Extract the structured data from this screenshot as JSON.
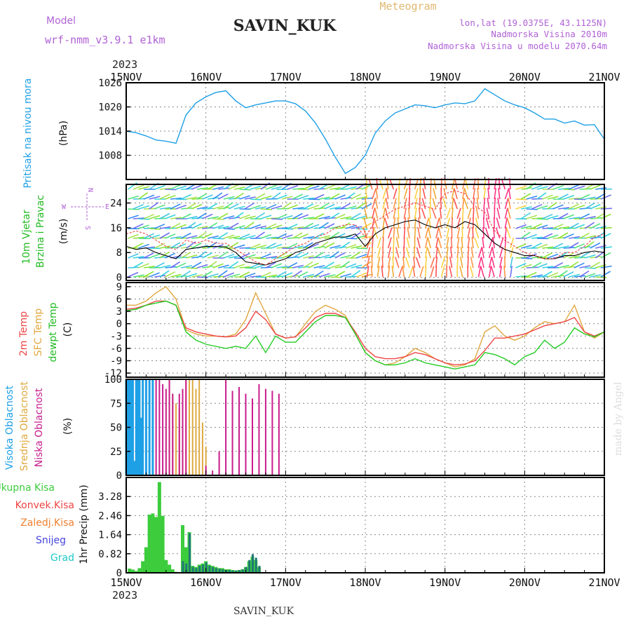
{
  "header": {
    "model_label": "Model",
    "model_name": "wrf-nmm_v3.9.1 e1km",
    "station": "SAVIN_KUK",
    "product": "Meteogram",
    "lonlat": "lon,lat (19.0375E, 43.1125N)",
    "elevation": "Nadmorska Visina 2010m",
    "model_elevation": "Nadmorska Visina u modelu 2070.64m"
  },
  "footer": {
    "station": "SAVIN_KUK",
    "credit": "made by Angel"
  },
  "colors": {
    "pressure": "#1ea0e6",
    "temp2m": "#ee4444",
    "sfc": "#e0a840",
    "dewpt": "#22cc22",
    "high_cloud": "#1ea0e6",
    "mid_cloud": "#e0a840",
    "low_cloud": "#c81c8c",
    "total_precip": "#3ccc3c",
    "conv_precip": "#ee4444",
    "frozen_precip": "#f08030",
    "snow": "#4444dd",
    "graupel": "#20c8c8",
    "wind_speed": "#000000",
    "gust": "#ee4444"
  },
  "time_axis": {
    "year": "2023",
    "tick_labels": [
      "15NOV",
      "16NOV",
      "17NOV",
      "18NOV",
      "19NOV",
      "20NOV",
      "21NOV"
    ]
  },
  "panels": {
    "pressure": {
      "label": "Pritisak na nivou mora",
      "unit": "(hPa)"
    },
    "wind": {
      "label1": "10m Vjetar",
      "label2": "Brzina i Pravac",
      "unit": "(m/s)",
      "compass_w": "W",
      "compass_e": "E",
      "compass_n": "N",
      "compass_s": "S"
    },
    "temp": {
      "label1": "2m Temp",
      "label2": "SFC Temp",
      "label3": "dewpt Temp",
      "unit": "(C)"
    },
    "cloud": {
      "label1": "Visoka Oblacnost",
      "label2": "Srednja Oblacnost",
      "label3": "Niska Oblacnost",
      "unit": "(%)"
    },
    "precip": {
      "unit": "1hr Precip (mm)",
      "legend": [
        "Ukupna Kisa",
        "Konvek.Kisa",
        "Zaledj.Kisa",
        "Snijeg",
        "Grad"
      ]
    }
  },
  "chart_data": [
    {
      "type": "line",
      "title": "",
      "ylabel": "Pritisak na nivou mora (hPa)",
      "ylim": [
        1002,
        1026
      ],
      "yticks": [
        1008,
        1014,
        1020,
        1026
      ],
      "x": [
        0,
        3,
        6,
        9,
        12,
        15,
        18,
        21,
        24,
        27,
        30,
        33,
        36,
        39,
        42,
        45,
        48,
        51,
        54,
        57,
        60,
        63,
        66,
        69,
        72,
        75,
        78,
        81,
        84,
        87,
        90,
        93,
        96,
        99,
        102,
        105,
        108,
        111,
        114,
        117,
        120,
        123,
        126,
        129,
        132,
        135,
        138,
        141,
        144
      ],
      "series": [
        {
          "name": "Pritisak na nivou mora",
          "values": [
            1014,
            1013.6,
            1012.8,
            1011.8,
            1011.5,
            1011,
            1018,
            1021,
            1022.5,
            1023.6,
            1024,
            1021.5,
            1019.8,
            1020.5,
            1021,
            1021.5,
            1021.5,
            1020.8,
            1019,
            1016,
            1012,
            1007.5,
            1003.5,
            1005,
            1008,
            1013.5,
            1016.5,
            1018.5,
            1019.5,
            1020.5,
            1020.3,
            1019.8,
            1020.5,
            1021,
            1020.8,
            1021.5,
            1024.5,
            1023,
            1021.5,
            1020.5,
            1019.8,
            1018.5,
            1017,
            1017,
            1016,
            1016.5,
            1015.5,
            1015.6,
            1012
          ]
        }
      ]
    },
    {
      "type": "line",
      "title": "",
      "ylabel": "10m Vjetar Brzina i Pravac (m/s)",
      "ylim": [
        -1,
        30
      ],
      "yticks": [
        0,
        8,
        16,
        24
      ],
      "x": [
        0,
        3,
        6,
        9,
        12,
        15,
        18,
        21,
        24,
        27,
        30,
        33,
        36,
        39,
        42,
        45,
        48,
        51,
        54,
        57,
        60,
        63,
        66,
        69,
        72,
        75,
        78,
        81,
        84,
        87,
        90,
        93,
        96,
        99,
        102,
        105,
        108,
        111,
        114,
        117,
        120,
        123,
        126,
        129,
        132,
        135,
        138,
        141,
        144
      ],
      "series": [
        {
          "name": "speed",
          "values": [
            10,
            9,
            9.5,
            8,
            7,
            6,
            9,
            9.5,
            10,
            10,
            9.8,
            8,
            5,
            4.5,
            4,
            5,
            6,
            8,
            9,
            11,
            12,
            13,
            13,
            14,
            10,
            14,
            16,
            17,
            18,
            18.5,
            17,
            16,
            17,
            16,
            18,
            17,
            14,
            11,
            9,
            8,
            7,
            7,
            6,
            6,
            7,
            7,
            8,
            8.5,
            8
          ]
        },
        {
          "name": "gust",
          "values": [
            14,
            15,
            14,
            12,
            10,
            9,
            12,
            11,
            12,
            11,
            11,
            9,
            7,
            5,
            4,
            6,
            8,
            10,
            11,
            13,
            14,
            16,
            17,
            17,
            13,
            18,
            20,
            22,
            23,
            24,
            23,
            22,
            27,
            28,
            27,
            23,
            21,
            15,
            12,
            10,
            8,
            7,
            6,
            6,
            8,
            8,
            10,
            13,
            14
          ]
        }
      ]
    },
    {
      "type": "line",
      "title": "",
      "ylabel": "2m Temp / SFC Temp / dewpt Temp (C)",
      "ylim": [
        -13,
        10
      ],
      "yticks": [
        -12,
        -9,
        -6,
        -3,
        0,
        3,
        6,
        9
      ],
      "x": [
        0,
        3,
        6,
        9,
        12,
        15,
        18,
        21,
        24,
        27,
        30,
        33,
        36,
        39,
        42,
        45,
        48,
        51,
        54,
        57,
        60,
        63,
        66,
        69,
        72,
        75,
        78,
        81,
        84,
        87,
        90,
        93,
        96,
        99,
        102,
        105,
        108,
        111,
        114,
        117,
        120,
        123,
        126,
        129,
        132,
        135,
        138,
        141,
        144
      ],
      "series": [
        {
          "name": "2m Temp",
          "values": [
            3.5,
            3.8,
            4.5,
            5.5,
            5.5,
            4.5,
            -1,
            -2,
            -2.5,
            -3,
            -3.2,
            -3,
            -1,
            3,
            1,
            -2.5,
            -3.5,
            -3.2,
            -1,
            1.5,
            2.5,
            2.5,
            1.5,
            -2,
            -6,
            -8,
            -8.5,
            -8.5,
            -8,
            -7,
            -7.5,
            -8.5,
            -9.5,
            -10,
            -9.8,
            -9,
            -6.5,
            -3.5,
            -3.5,
            -3,
            -2.5,
            -1.5,
            -0.5,
            0,
            0.5,
            1.5,
            -2,
            -3,
            -2
          ]
        },
        {
          "name": "SFC Temp",
          "values": [
            4.5,
            4.5,
            5.5,
            7.5,
            9,
            6,
            -1.5,
            -2.5,
            -3,
            -3,
            -3.2,
            -2.5,
            1,
            7.5,
            2.5,
            -2.5,
            -3.5,
            -3.2,
            0,
            3,
            4.5,
            3.5,
            2,
            -2.5,
            -7,
            -9,
            -10,
            -9.5,
            -8,
            -6,
            -7,
            -8.5,
            -9.5,
            -10.5,
            -10,
            -8.5,
            -2,
            -0.5,
            -3,
            -4,
            -3,
            -1,
            0.5,
            0,
            0.5,
            4.5,
            -2,
            -3.5,
            -2
          ]
        },
        {
          "name": "dewpt Temp",
          "values": [
            3.2,
            3.5,
            4.5,
            5,
            5.5,
            4.5,
            -2,
            -4,
            -5,
            -5.5,
            -6,
            -5.5,
            -6,
            -3,
            -7,
            -3,
            -4.5,
            -4.5,
            -2,
            0.5,
            2,
            2,
            1.5,
            -2.5,
            -7,
            -9,
            -10,
            -10,
            -9.5,
            -8.5,
            -9.5,
            -10,
            -10.5,
            -11,
            -10.5,
            -10,
            -7,
            -7.5,
            -8.5,
            -10,
            -8,
            -7,
            -4,
            -6,
            -4.5,
            -1,
            -2.5,
            -3.2,
            -2
          ]
        }
      ]
    },
    {
      "type": "bar",
      "title": "",
      "ylabel": "Visoka / Srednja / Niska Oblacnost (%)",
      "ylim": [
        0,
        100
      ],
      "yticks": [
        0,
        25,
        50,
        75,
        100
      ],
      "series": [
        {
          "name": "Visoka Oblacnost",
          "x": [
            0,
            0.5,
            1,
            1.5,
            2,
            2.5,
            3,
            3.5,
            4,
            4.5,
            5,
            5.5,
            6,
            6.5,
            7,
            7.5,
            8,
            8.5,
            9,
            9.5,
            10,
            10.5,
            11,
            11.5,
            12,
            12.5,
            13,
            13.5,
            14,
            14.5,
            15,
            15.5,
            16,
            16.5,
            17,
            17.5,
            18,
            18.5,
            19,
            19.5,
            20,
            20.5,
            21,
            21.5,
            22,
            22.5,
            23,
            23.5,
            24
          ],
          "values": [
            100,
            100,
            100,
            100,
            100,
            15,
            100,
            100,
            100,
            60,
            100,
            0,
            100,
            0,
            100,
            0,
            100,
            0,
            0,
            0,
            0,
            0,
            0,
            0,
            0,
            0,
            0,
            0,
            0,
            0,
            0,
            0,
            0,
            0,
            0,
            0,
            0,
            0,
            0,
            0,
            0,
            0,
            0,
            0,
            0,
            0,
            0,
            0,
            0
          ]
        },
        {
          "name": "Srednja Oblacnost",
          "values_note": "",
          "x": [
            13,
            14,
            15,
            16,
            17,
            18,
            19,
            20,
            21,
            22,
            23,
            24
          ],
          "values": [
            100,
            85,
            75,
            70,
            33,
            100,
            100,
            100,
            90,
            100,
            55,
            30
          ]
        },
        {
          "name": "Niska Oblacnost",
          "x": [
            9,
            10,
            11,
            12,
            13,
            14,
            16,
            17,
            18,
            24,
            26,
            28,
            30,
            32,
            34,
            36,
            38,
            40,
            42,
            44,
            46
          ],
          "values": [
            100,
            100,
            95,
            90,
            100,
            85,
            85,
            90,
            100,
            10,
            5,
            25,
            100,
            88,
            92,
            85,
            80,
            95,
            90,
            88,
            85
          ]
        }
      ]
    },
    {
      "type": "bar",
      "title": "",
      "ylabel": "1hr Precip (mm)",
      "ylim": [
        0,
        4.1
      ],
      "yticks": [
        0,
        0.82,
        1.64,
        2.46,
        3.28
      ],
      "series": [
        {
          "name": "Ukupna Kisa",
          "x": [
            1,
            2,
            3,
            4,
            5,
            6,
            7,
            8,
            9,
            10,
            11,
            12,
            13,
            14,
            15,
            16,
            17,
            18,
            19,
            20,
            21,
            22,
            23,
            24,
            25,
            26,
            27,
            28,
            29,
            30,
            31,
            32,
            33,
            34,
            35,
            36,
            37,
            38,
            39,
            40
          ],
          "values": [
            0.18,
            0.14,
            0.08,
            0.2,
            0.5,
            1.1,
            2.5,
            2.55,
            2.4,
            3.9,
            2.45,
            0.55,
            0.35,
            0.15,
            0.04,
            0.02,
            2.05,
            1.1,
            1.75,
            0.3,
            0.25,
            0.35,
            0.4,
            0.5,
            0.35,
            0.3,
            0.25,
            0.2,
            0.2,
            0.15,
            0.15,
            0.12,
            0.1,
            0.12,
            0.15,
            0.25,
            0.5,
            0.7,
            0.55,
            0.25
          ]
        },
        {
          "name": "Snijeg",
          "x": [
            17,
            18,
            19,
            20,
            21,
            22,
            23,
            24,
            25,
            26,
            27,
            28,
            29,
            30,
            31,
            32,
            33,
            34,
            35,
            36,
            37,
            38,
            39,
            40
          ],
          "values": [
            0.5,
            0.4,
            1.7,
            0.25,
            0.2,
            0.3,
            0.35,
            0.45,
            0.3,
            0.25,
            0.2,
            0.18,
            0.15,
            0.12,
            0.12,
            0.1,
            0.1,
            0.12,
            0.15,
            0.25,
            0.55,
            0.8,
            0.65,
            0.3
          ]
        }
      ]
    }
  ]
}
